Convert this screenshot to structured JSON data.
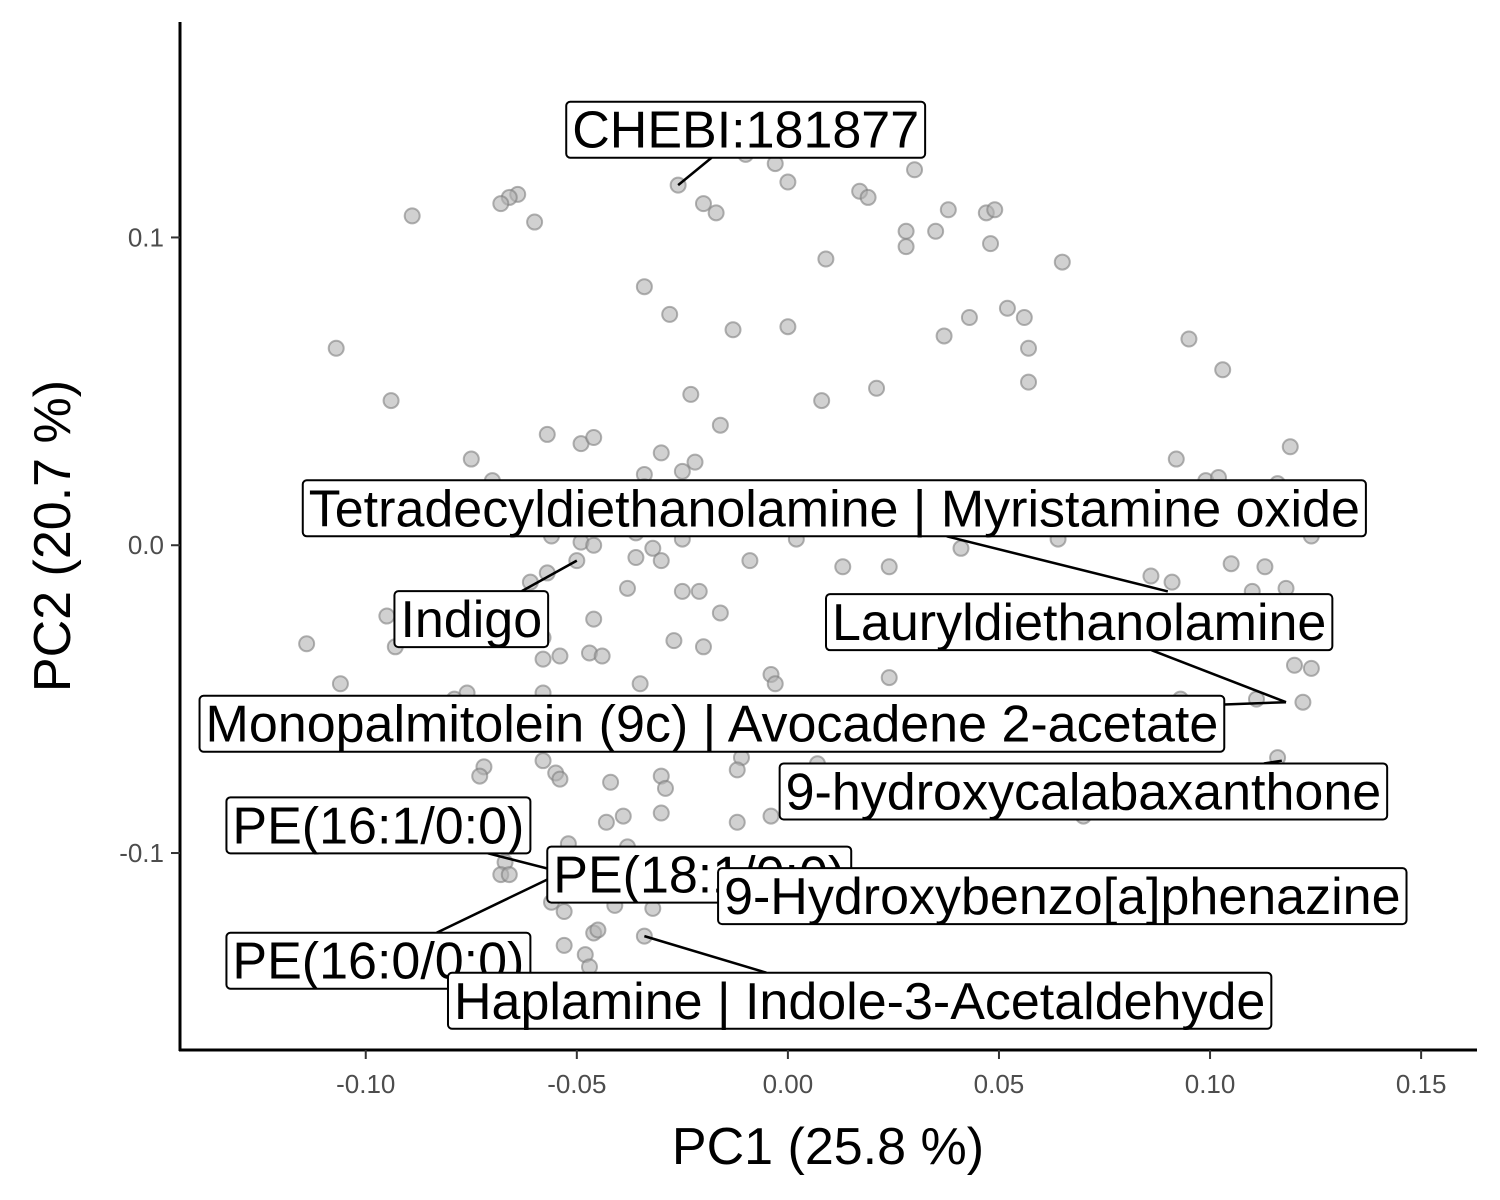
{
  "chart_data": {
    "type": "scatter",
    "title": "",
    "xlabel": "PC1 (25.8 %)",
    "ylabel": "PC2 (20.7 %)",
    "xlim": [
      -0.144,
      0.163
    ],
    "ylim": [
      -0.164,
      0.17
    ],
    "x_ticks": [
      -0.1,
      -0.05,
      0.0,
      0.05,
      0.1,
      0.15
    ],
    "x_tick_labels": [
      "-0.10",
      "-0.05",
      "0.00",
      "0.05",
      "0.10",
      "0.15"
    ],
    "y_ticks": [
      -0.1,
      0.0,
      0.1
    ],
    "y_tick_labels": [
      "-0.1",
      "0.0",
      "0.1"
    ],
    "grid": false,
    "legend": "none",
    "point_color": "#b3b3b3",
    "points": [
      [
        -0.026,
        0.117
      ],
      [
        -0.02,
        0.111
      ],
      [
        -0.017,
        0.108
      ],
      [
        -0.064,
        0.114
      ],
      [
        -0.066,
        0.113
      ],
      [
        -0.068,
        0.111
      ],
      [
        -0.06,
        0.105
      ],
      [
        -0.089,
        0.107
      ],
      [
        -0.01,
        0.127
      ],
      [
        -0.003,
        0.124
      ],
      [
        0.0,
        0.118
      ],
      [
        0.017,
        0.115
      ],
      [
        0.019,
        0.113
      ],
      [
        0.03,
        0.122
      ],
      [
        0.038,
        0.109
      ],
      [
        0.047,
        0.108
      ],
      [
        0.049,
        0.109
      ],
      [
        0.028,
        0.102
      ],
      [
        0.035,
        0.102
      ],
      [
        0.028,
        0.097
      ],
      [
        0.048,
        0.098
      ],
      [
        0.065,
        0.092
      ],
      [
        0.009,
        0.093
      ],
      [
        -0.034,
        0.084
      ],
      [
        -0.028,
        0.075
      ],
      [
        -0.013,
        0.07
      ],
      [
        0.0,
        0.071
      ],
      [
        0.043,
        0.074
      ],
      [
        0.052,
        0.077
      ],
      [
        0.056,
        0.074
      ],
      [
        0.057,
        0.064
      ],
      [
        0.037,
        0.068
      ],
      [
        0.057,
        0.053
      ],
      [
        0.095,
        0.067
      ],
      [
        0.103,
        0.057
      ],
      [
        -0.107,
        0.064
      ],
      [
        -0.094,
        0.047
      ],
      [
        -0.023,
        0.049
      ],
      [
        0.008,
        0.047
      ],
      [
        0.021,
        0.051
      ],
      [
        -0.057,
        0.036
      ],
      [
        -0.049,
        0.033
      ],
      [
        -0.046,
        0.035
      ],
      [
        -0.016,
        0.039
      ],
      [
        -0.03,
        0.03
      ],
      [
        -0.075,
        0.028
      ],
      [
        -0.022,
        0.027
      ],
      [
        -0.025,
        0.024
      ],
      [
        -0.034,
        0.023
      ],
      [
        -0.07,
        0.021
      ],
      [
        -0.034,
        0.019
      ],
      [
        -0.06,
        0.015
      ],
      [
        -0.018,
        0.013
      ],
      [
        0.023,
        0.017
      ],
      [
        0.054,
        0.014
      ],
      [
        0.078,
        0.018
      ],
      [
        0.092,
        0.028
      ],
      [
        0.099,
        0.021
      ],
      [
        0.102,
        0.022
      ],
      [
        0.116,
        0.02
      ],
      [
        0.119,
        0.032
      ],
      [
        0.12,
        0.012
      ],
      [
        0.124,
        0.016
      ],
      [
        -0.081,
        0.013
      ],
      [
        -0.06,
        0.008
      ],
      [
        -0.056,
        0.003
      ],
      [
        -0.049,
        0.001
      ],
      [
        -0.046,
        0.0
      ],
      [
        -0.036,
        0.004
      ],
      [
        -0.032,
        -0.001
      ],
      [
        -0.03,
        -0.005
      ],
      [
        -0.036,
        -0.004
      ],
      [
        -0.025,
        0.002
      ],
      [
        -0.015,
        0.006
      ],
      [
        -0.009,
        -0.005
      ],
      [
        0.002,
        0.002
      ],
      [
        0.013,
        -0.007
      ],
      [
        0.024,
        -0.007
      ],
      [
        0.041,
        -0.001
      ],
      [
        0.064,
        0.002
      ],
      [
        0.086,
        -0.01
      ],
      [
        0.091,
        -0.012
      ],
      [
        0.105,
        -0.006
      ],
      [
        0.113,
        -0.007
      ],
      [
        0.11,
        -0.015
      ],
      [
        0.118,
        -0.014
      ],
      [
        0.124,
        0.003
      ],
      [
        -0.057,
        -0.009
      ],
      [
        -0.05,
        -0.005
      ],
      [
        -0.061,
        -0.012
      ],
      [
        -0.075,
        -0.019
      ],
      [
        -0.095,
        -0.023
      ],
      [
        -0.093,
        -0.033
      ],
      [
        -0.114,
        -0.032
      ],
      [
        -0.046,
        -0.024
      ],
      [
        -0.038,
        -0.014
      ],
      [
        -0.025,
        -0.015
      ],
      [
        -0.021,
        -0.015
      ],
      [
        -0.016,
        -0.022
      ],
      [
        -0.027,
        -0.031
      ],
      [
        -0.02,
        -0.033
      ],
      [
        -0.058,
        -0.03
      ],
      [
        -0.054,
        -0.036
      ],
      [
        -0.047,
        -0.035
      ],
      [
        -0.044,
        -0.036
      ],
      [
        -0.058,
        -0.037
      ],
      [
        -0.035,
        -0.045
      ],
      [
        -0.004,
        -0.042
      ],
      [
        -0.003,
        -0.045
      ],
      [
        0.024,
        -0.043
      ],
      [
        0.12,
        -0.039
      ],
      [
        0.124,
        -0.04
      ],
      [
        -0.106,
        -0.045
      ],
      [
        -0.076,
        -0.048
      ],
      [
        -0.058,
        -0.048
      ],
      [
        -0.062,
        -0.06
      ],
      [
        -0.079,
        -0.05
      ],
      [
        0.093,
        -0.05
      ],
      [
        0.111,
        -0.05
      ],
      [
        0.122,
        -0.051
      ],
      [
        -0.058,
        -0.07
      ],
      [
        -0.072,
        -0.072
      ],
      [
        -0.073,
        -0.075
      ],
      [
        -0.055,
        -0.074
      ],
      [
        -0.054,
        -0.076
      ],
      [
        -0.042,
        -0.077
      ],
      [
        -0.03,
        -0.075
      ],
      [
        -0.029,
        -0.079
      ],
      [
        -0.011,
        -0.069
      ],
      [
        -0.012,
        -0.073
      ],
      [
        0.007,
        -0.071
      ],
      [
        0.116,
        -0.069
      ],
      [
        -0.043,
        -0.09
      ],
      [
        -0.039,
        -0.088
      ],
      [
        -0.03,
        -0.087
      ],
      [
        -0.038,
        -0.098
      ],
      [
        -0.012,
        -0.09
      ],
      [
        -0.004,
        -0.088
      ],
      [
        0.07,
        -0.088
      ],
      [
        -0.052,
        -0.097
      ],
      [
        -0.067,
        -0.103
      ],
      [
        -0.068,
        -0.107
      ],
      [
        -0.066,
        -0.107
      ],
      [
        -0.045,
        -0.111
      ],
      [
        -0.021,
        -0.101
      ],
      [
        -0.017,
        -0.104
      ],
      [
        -0.041,
        -0.117
      ],
      [
        -0.032,
        -0.118
      ],
      [
        -0.056,
        -0.116
      ],
      [
        -0.053,
        -0.119
      ],
      [
        -0.053,
        -0.13
      ],
      [
        -0.046,
        -0.126
      ],
      [
        -0.045,
        -0.125
      ],
      [
        -0.034,
        -0.127
      ],
      [
        -0.05,
        -0.104
      ],
      [
        -0.048,
        -0.133
      ],
      [
        -0.047,
        -0.137
      ],
      [
        -0.005,
        -0.111
      ],
      [
        0.06,
        -0.117
      ]
    ],
    "labels": [
      {
        "text": "CHEBI:181877",
        "x": -0.01,
        "y": 0.135,
        "px": -0.026,
        "py": 0.117
      },
      {
        "text": "Tetradecyldiethanolamine | Myristamine oxide",
        "x": 0.011,
        "y": 0.012,
        "px": 0.09,
        "py": -0.015
      },
      {
        "text": "Indigo",
        "x": -0.075,
        "y": -0.024,
        "px": -0.05,
        "py": -0.005
      },
      {
        "text": "Lauryldiethanolamine",
        "x": 0.069,
        "y": -0.025,
        "px": 0.118,
        "py": -0.051
      },
      {
        "text": "Monopalmitolein (9c) | Avocadene 2-acetate",
        "x": -0.018,
        "y": -0.058,
        "px": 0.118,
        "py": -0.051
      },
      {
        "text": "9-hydroxycalabaxanthone",
        "x": 0.07,
        "y": -0.08,
        "px": 0.117,
        "py": -0.07
      },
      {
        "text": "PE(16:1/0:0)",
        "x": -0.097,
        "y": -0.091,
        "px": -0.04,
        "py": -0.111
      },
      {
        "text": "PE(18:1/0:0)",
        "x": -0.021,
        "y": -0.107,
        "px": -0.042,
        "py": -0.112
      },
      {
        "text": "9-Hydroxybenzo[a]phenazine",
        "x": 0.065,
        "y": -0.114,
        "px": 0.06,
        "py": -0.117
      },
      {
        "text": "PE(16:0/0:0)",
        "x": -0.097,
        "y": -0.135,
        "px": -0.05,
        "py": -0.104
      },
      {
        "text": "Haplamine | Indole-3-Acetaldehyde",
        "x": 0.017,
        "y": -0.148,
        "px": -0.034,
        "py": -0.127
      }
    ]
  }
}
